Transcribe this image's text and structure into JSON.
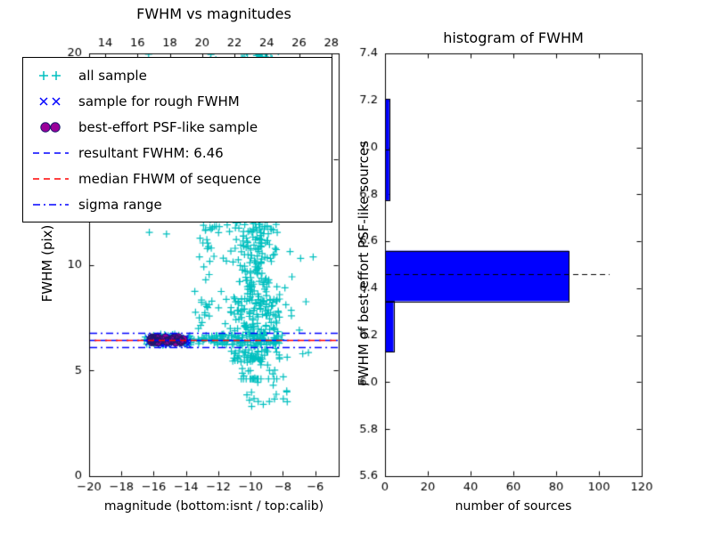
{
  "figure": {
    "background": "#ffffff",
    "frame_color": "#000000"
  },
  "chart_data": [
    {
      "type": "scatter",
      "title": "FWHM vs magnitudes",
      "xlabel": "magnitude (bottom:isnt / top:calib)",
      "ylabel": "FWHM (pix)",
      "xlim": [
        -20,
        -4.55
      ],
      "ylim": [
        0,
        20
      ],
      "x_ticks": {
        "values": [
          -20,
          -18,
          -16,
          -14,
          -12,
          -10,
          -8,
          -6
        ],
        "labels": [
          "−20",
          "−18",
          "−16",
          "−14",
          "−12",
          "−10",
          "−8",
          "−6"
        ]
      },
      "top_ticks": {
        "positions": [
          -19,
          -17,
          -15,
          -13,
          -11,
          -9,
          -7,
          -5
        ],
        "labels": [
          "14",
          "16",
          "18",
          "20",
          "22",
          "24",
          "26",
          "28"
        ]
      },
      "y_ticks": {
        "values": [
          0,
          5,
          10,
          15,
          20
        ],
        "labels": [
          "0",
          "5",
          "10",
          "15",
          "20"
        ]
      },
      "scatter_seed": 42,
      "series": [
        {
          "name": "all sample",
          "marker": "plus",
          "color": "#00bfbf",
          "clusters": [
            {
              "n": 150,
              "x": [
                -16.6,
                -8.0
              ],
              "y": [
                6.2,
                6.72
              ]
            },
            {
              "n": 60,
              "x": [
                -13.6,
                -9.3
              ],
              "y": [
                6.8,
                12.5
              ]
            },
            {
              "n": 400,
              "gauss": true,
              "mx": -9.55,
              "sx": 0.6,
              "my": 11.8,
              "sy": 4.3,
              "clipx": [
                -12.2,
                -7.4
              ],
              "clipy": [
                4.6,
                20.45
              ]
            },
            {
              "n": 120,
              "x": [
                -11.3,
                -8.2
              ],
              "y": [
                5.3,
                8.5
              ]
            },
            {
              "n": 80,
              "x": [
                -10.4,
                -8.6
              ],
              "y": [
                14.5,
                20.4
              ]
            },
            {
              "n": 45,
              "x": [
                -13.25,
                -12.6
              ],
              "y": [
                7.5,
                20.3
              ]
            },
            {
              "n": 30,
              "x": [
                -12.55,
                -12.1
              ],
              "y": [
                10.0,
                20.3
              ]
            },
            {
              "n": 10,
              "x": [
                -16.6,
                -14.2
              ],
              "y": [
                11.0,
                20.2
              ]
            },
            {
              "n": 28,
              "x": [
                -10.6,
                -7.7
              ],
              "y": [
                3.0,
                5.9
              ]
            },
            {
              "n": 12,
              "x": [
                -7.7,
                -6.05
              ],
              "y": [
                5.6,
                14.0
              ]
            },
            {
              "n": 26,
              "gauss": true,
              "mx": -9.0,
              "sx": 1.2,
              "my": 19.7,
              "sy": 0.5,
              "clipx": [
                -12.0,
                -6.5
              ],
              "clipy": [
                18.8,
                20.45
              ]
            }
          ]
        },
        {
          "name": "sample for rough FWHM",
          "marker": "cross",
          "color": "#0000ff",
          "clusters": [
            {
              "n": 42,
              "x": [
                -16.35,
                -13.85
              ],
              "y": [
                6.22,
                6.62
              ]
            }
          ]
        },
        {
          "name": "best-effort PSF-like sample",
          "marker": "circle",
          "color": "#990099",
          "edge": "#1a1a6e",
          "clusters": [
            {
              "n": 30,
              "x": [
                -16.2,
                -14.05
              ],
              "y": [
                6.33,
                6.56
              ]
            }
          ]
        }
      ],
      "hlines": [
        {
          "name": "resultant FWHM",
          "y": 6.46,
          "color": "#0000ff",
          "dash": [
            7,
            5
          ],
          "offset": 0
        },
        {
          "name": "median FHWM of sequence",
          "y": 6.43,
          "color": "#ff0000",
          "dash": [
            7,
            5
          ],
          "offset": 7
        },
        {
          "name": "sigma range upper",
          "y": 6.8,
          "color": "#0000ff",
          "dash": [
            8,
            4,
            2,
            4
          ],
          "offset": 0
        },
        {
          "name": "sigma range lower",
          "y": 6.12,
          "color": "#0000ff",
          "dash": [
            8,
            4,
            2,
            4
          ],
          "offset": 0
        }
      ]
    },
    {
      "type": "bar",
      "orientation": "horizontal",
      "title": "histogram of FWHM",
      "xlabel": "number of sources",
      "ylabel": "FWHM of best-effort PSF-like sources",
      "xlim": [
        0,
        120
      ],
      "ylim": [
        5.6,
        7.4
      ],
      "x_ticks": {
        "values": [
          0,
          20,
          40,
          60,
          80,
          100,
          120
        ],
        "labels": [
          "0",
          "20",
          "40",
          "60",
          "80",
          "100",
          "120"
        ]
      },
      "y_ticks": {
        "values": [
          5.6,
          5.8,
          6.0,
          6.2,
          6.4,
          6.6,
          6.8,
          7.0,
          7.2,
          7.4
        ],
        "labels": [
          "5.6",
          "5.8",
          "6.0",
          "6.2",
          "6.4",
          "6.6",
          "6.8",
          "7.0",
          "7.2",
          "7.4"
        ]
      },
      "bar_color": "#0000ff",
      "bar_edge": "#000000",
      "bin_edges": [
        6.13,
        6.345,
        6.56,
        6.775,
        6.99,
        7.205
      ],
      "counts": [
        4,
        86,
        0,
        2,
        2
      ],
      "dashed_line": {
        "y": 6.46,
        "x_start": 0,
        "x_end": 105,
        "color": "#000000",
        "dash": [
          6,
          4
        ]
      }
    }
  ],
  "legend": {
    "items": [
      {
        "label": "all sample",
        "marker": "plus",
        "color": "#00bfbf"
      },
      {
        "label": "sample for rough FWHM",
        "marker": "cross",
        "color": "#0000ff"
      },
      {
        "label": "best-effort PSF-like sample",
        "marker": "circle",
        "color": "#990099",
        "edge": "#1a1a6e"
      },
      {
        "label": "resultant FWHM: 6.46",
        "marker": "dashed",
        "color": "#0000ff"
      },
      {
        "label": "median FHWM of sequence",
        "marker": "dashed",
        "color": "#ff0000"
      },
      {
        "label": "sigma range",
        "marker": "dashdot",
        "color": "#0000ff"
      }
    ]
  }
}
